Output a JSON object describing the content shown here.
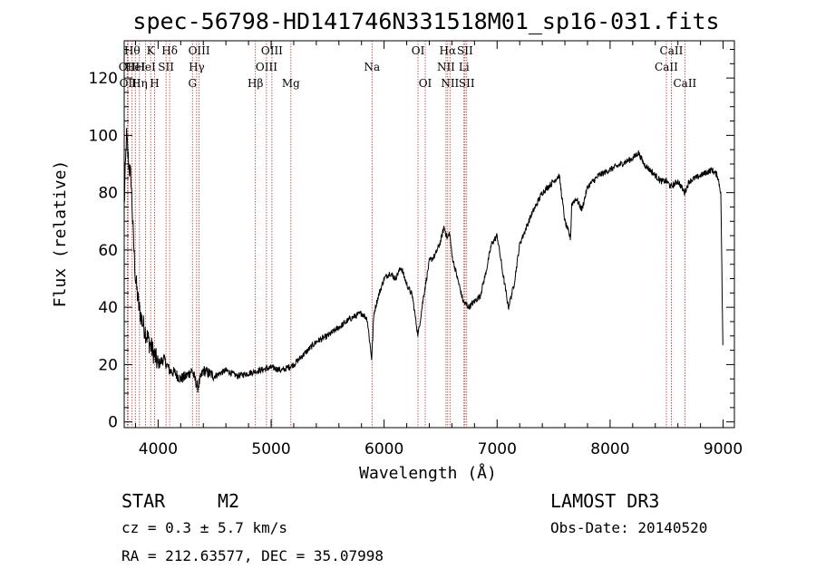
{
  "chart_data": {
    "type": "line",
    "title": "spec-56798-HD141746N331518M01_sp16-031.fits",
    "xlabel": "Wavelength (Å)",
    "ylabel": "Flux (relative)",
    "xlim": [
      3700,
      9100
    ],
    "ylim": [
      -2,
      133
    ],
    "x_ticks": [
      4000,
      5000,
      6000,
      7000,
      8000,
      9000
    ],
    "y_ticks": [
      0,
      20,
      40,
      60,
      80,
      100,
      120
    ],
    "grid": false,
    "legend": "none",
    "series": [
      {
        "x": [
          3700,
          3720,
          3740,
          3760,
          3780,
          3800,
          3830,
          3860,
          3900,
          3950,
          4000,
          4050,
          4100,
          4150,
          4200,
          4250,
          4300,
          4350,
          4400,
          4500,
          4600,
          4700,
          4800,
          4900,
          5000,
          5100,
          5200,
          5300,
          5400,
          5500,
          5600,
          5700,
          5800,
          5850,
          5890,
          5910,
          5950,
          6000,
          6050,
          6100,
          6150,
          6200,
          6250,
          6300,
          6350,
          6400,
          6450,
          6500,
          6530,
          6560,
          6580,
          6600,
          6650,
          6700,
          6750,
          6800,
          6850,
          6900,
          6950,
          7000,
          7020,
          7050,
          7100,
          7150,
          7200,
          7300,
          7400,
          7500,
          7550,
          7600,
          7650,
          7660,
          7700,
          7750,
          7800,
          7900,
          8000,
          8100,
          8200,
          8250,
          8300,
          8350,
          8400,
          8450,
          8500,
          8540,
          8600,
          8660,
          8700,
          8800,
          8900,
          8950,
          8980,
          9000
        ],
        "y": [
          75,
          100,
          90,
          85,
          65,
          50,
          40,
          35,
          30,
          25,
          20,
          22,
          18,
          17,
          15,
          16,
          18,
          12,
          18,
          16,
          18,
          16,
          17,
          18,
          19,
          18,
          20,
          24,
          28,
          30,
          33,
          36,
          38,
          36,
          22,
          38,
          44,
          50,
          52,
          50,
          54,
          48,
          44,
          30,
          44,
          56,
          58,
          63,
          68,
          64,
          66,
          58,
          50,
          42,
          40,
          42,
          44,
          52,
          62,
          65,
          60,
          52,
          40,
          48,
          62,
          72,
          80,
          84,
          86,
          70,
          64,
          76,
          78,
          74,
          82,
          86,
          88,
          90,
          92,
          94,
          90,
          88,
          86,
          84,
          84,
          82,
          84,
          80,
          84,
          86,
          88,
          86,
          80,
          20
        ]
      }
    ],
    "line_markers": [
      {
        "wl": 3727,
        "row": 1,
        "label": "OII"
      },
      {
        "wl": 3734,
        "row": 2,
        "label": "OII"
      },
      {
        "wl": 3770,
        "row": 0,
        "label": "Hθ"
      },
      {
        "wl": 3798,
        "row": 1,
        "label": "HeI"
      },
      {
        "wl": 3835,
        "row": 2,
        "label": "Hη"
      },
      {
        "wl": 3889,
        "row": 1,
        "label": "HeI"
      },
      {
        "wl": 3934,
        "row": 0,
        "label": "K"
      },
      {
        "wl": 3969,
        "row": 2,
        "label": "H"
      },
      {
        "wl": 4070,
        "row": 1,
        "label": "SII"
      },
      {
        "wl": 4102,
        "row": 0,
        "label": "Hδ"
      },
      {
        "wl": 4304,
        "row": 2,
        "label": "G"
      },
      {
        "wl": 4341,
        "row": 1,
        "label": "Hγ"
      },
      {
        "wl": 4363,
        "row": 0,
        "label": "OIII"
      },
      {
        "wl": 4861,
        "row": 2,
        "label": "Hβ"
      },
      {
        "wl": 4959,
        "row": 1,
        "label": "OIII"
      },
      {
        "wl": 5007,
        "row": 0,
        "label": "OIII"
      },
      {
        "wl": 5175,
        "row": 2,
        "label": "Mg"
      },
      {
        "wl": 5893,
        "row": 1,
        "label": "Na"
      },
      {
        "wl": 6300,
        "row": 0,
        "label": "OI"
      },
      {
        "wl": 6364,
        "row": 2,
        "label": "OI"
      },
      {
        "wl": 6548,
        "row": 1,
        "label": "NII"
      },
      {
        "wl": 6563,
        "row": 0,
        "label": "Hα"
      },
      {
        "wl": 6583,
        "row": 2,
        "label": "NII"
      },
      {
        "wl": 6707,
        "row": 1,
        "label": "Li"
      },
      {
        "wl": 6716,
        "row": 0,
        "label": "SII"
      },
      {
        "wl": 6731,
        "row": 2,
        "label": "SII"
      },
      {
        "wl": 8498,
        "row": 1,
        "label": "CaII"
      },
      {
        "wl": 8542,
        "row": 0,
        "label": "CaII"
      },
      {
        "wl": 8662,
        "row": 2,
        "label": "CaII"
      }
    ]
  },
  "info": {
    "class_label": "STAR",
    "subclass": "M2",
    "survey": "LAMOST DR3",
    "cz": "cz = 0.3 ± 5.7 km/s",
    "obs_date": "Obs-Date: 20140520",
    "coords": "RA = 212.63577, DEC =  35.07998"
  }
}
